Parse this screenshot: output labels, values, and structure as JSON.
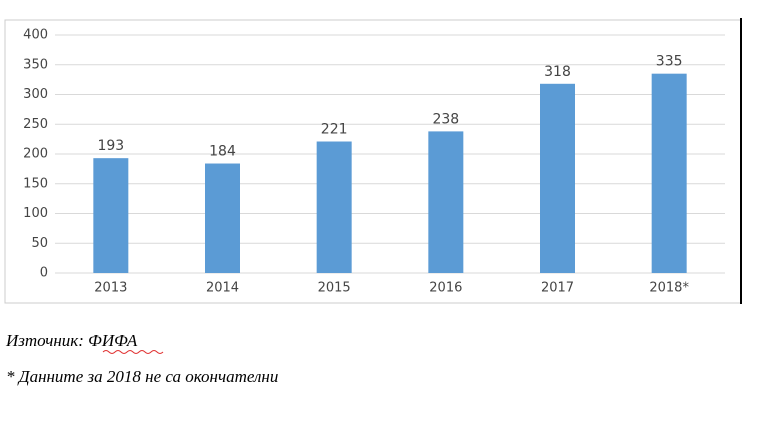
{
  "chart_data": {
    "type": "bar",
    "categories": [
      "2013",
      "2014",
      "2015",
      "2016",
      "2017",
      "2018*"
    ],
    "values": [
      193,
      184,
      221,
      238,
      318,
      335
    ],
    "color": "#5b9bd5",
    "ylim": [
      0,
      400
    ],
    "yticks": [
      0,
      50,
      100,
      150,
      200,
      250,
      300,
      350,
      400
    ],
    "grid": true
  },
  "source": "Източник: ФИФА",
  "note": "* Данните за 2018 не са окончателни"
}
